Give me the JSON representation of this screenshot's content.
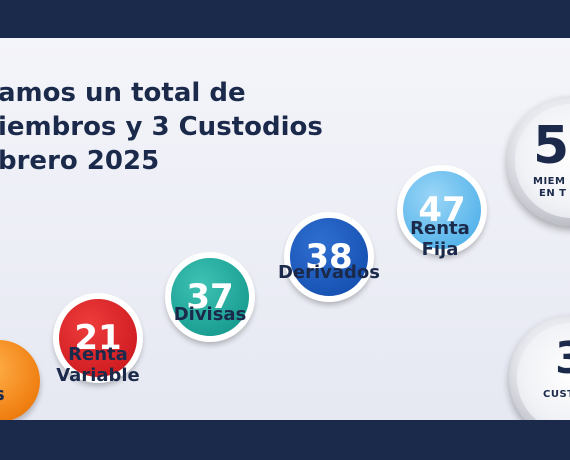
{
  "heading": {
    "line1": "amos un total de",
    "line2": "iembros y 3 Custodios",
    "line3": "brero 2025"
  },
  "categories": [
    {
      "count": "",
      "label_lines": [
        "s"
      ],
      "color": "#f07f12"
    },
    {
      "count": "21",
      "label_lines": [
        "Renta",
        "Variable"
      ],
      "color": "#cd1a1f"
    },
    {
      "count": "37",
      "label_lines": [
        "Divisas"
      ],
      "color": "#169a8e"
    },
    {
      "count": "38",
      "label_lines": [
        "Derivados"
      ],
      "color": "#1550b0"
    },
    {
      "count": "47",
      "label_lines": [
        "Renta",
        "Fija"
      ],
      "color": "#55b3ea"
    }
  ],
  "totals": {
    "members": {
      "number": "5",
      "line1": "MIEM",
      "line2": "EN T"
    },
    "custodians": {
      "number": "3",
      "line1": "CUST"
    }
  },
  "colors": {
    "background": "#1b2a4b",
    "panel": "#eef0f6",
    "text": "#1b2a4b"
  }
}
